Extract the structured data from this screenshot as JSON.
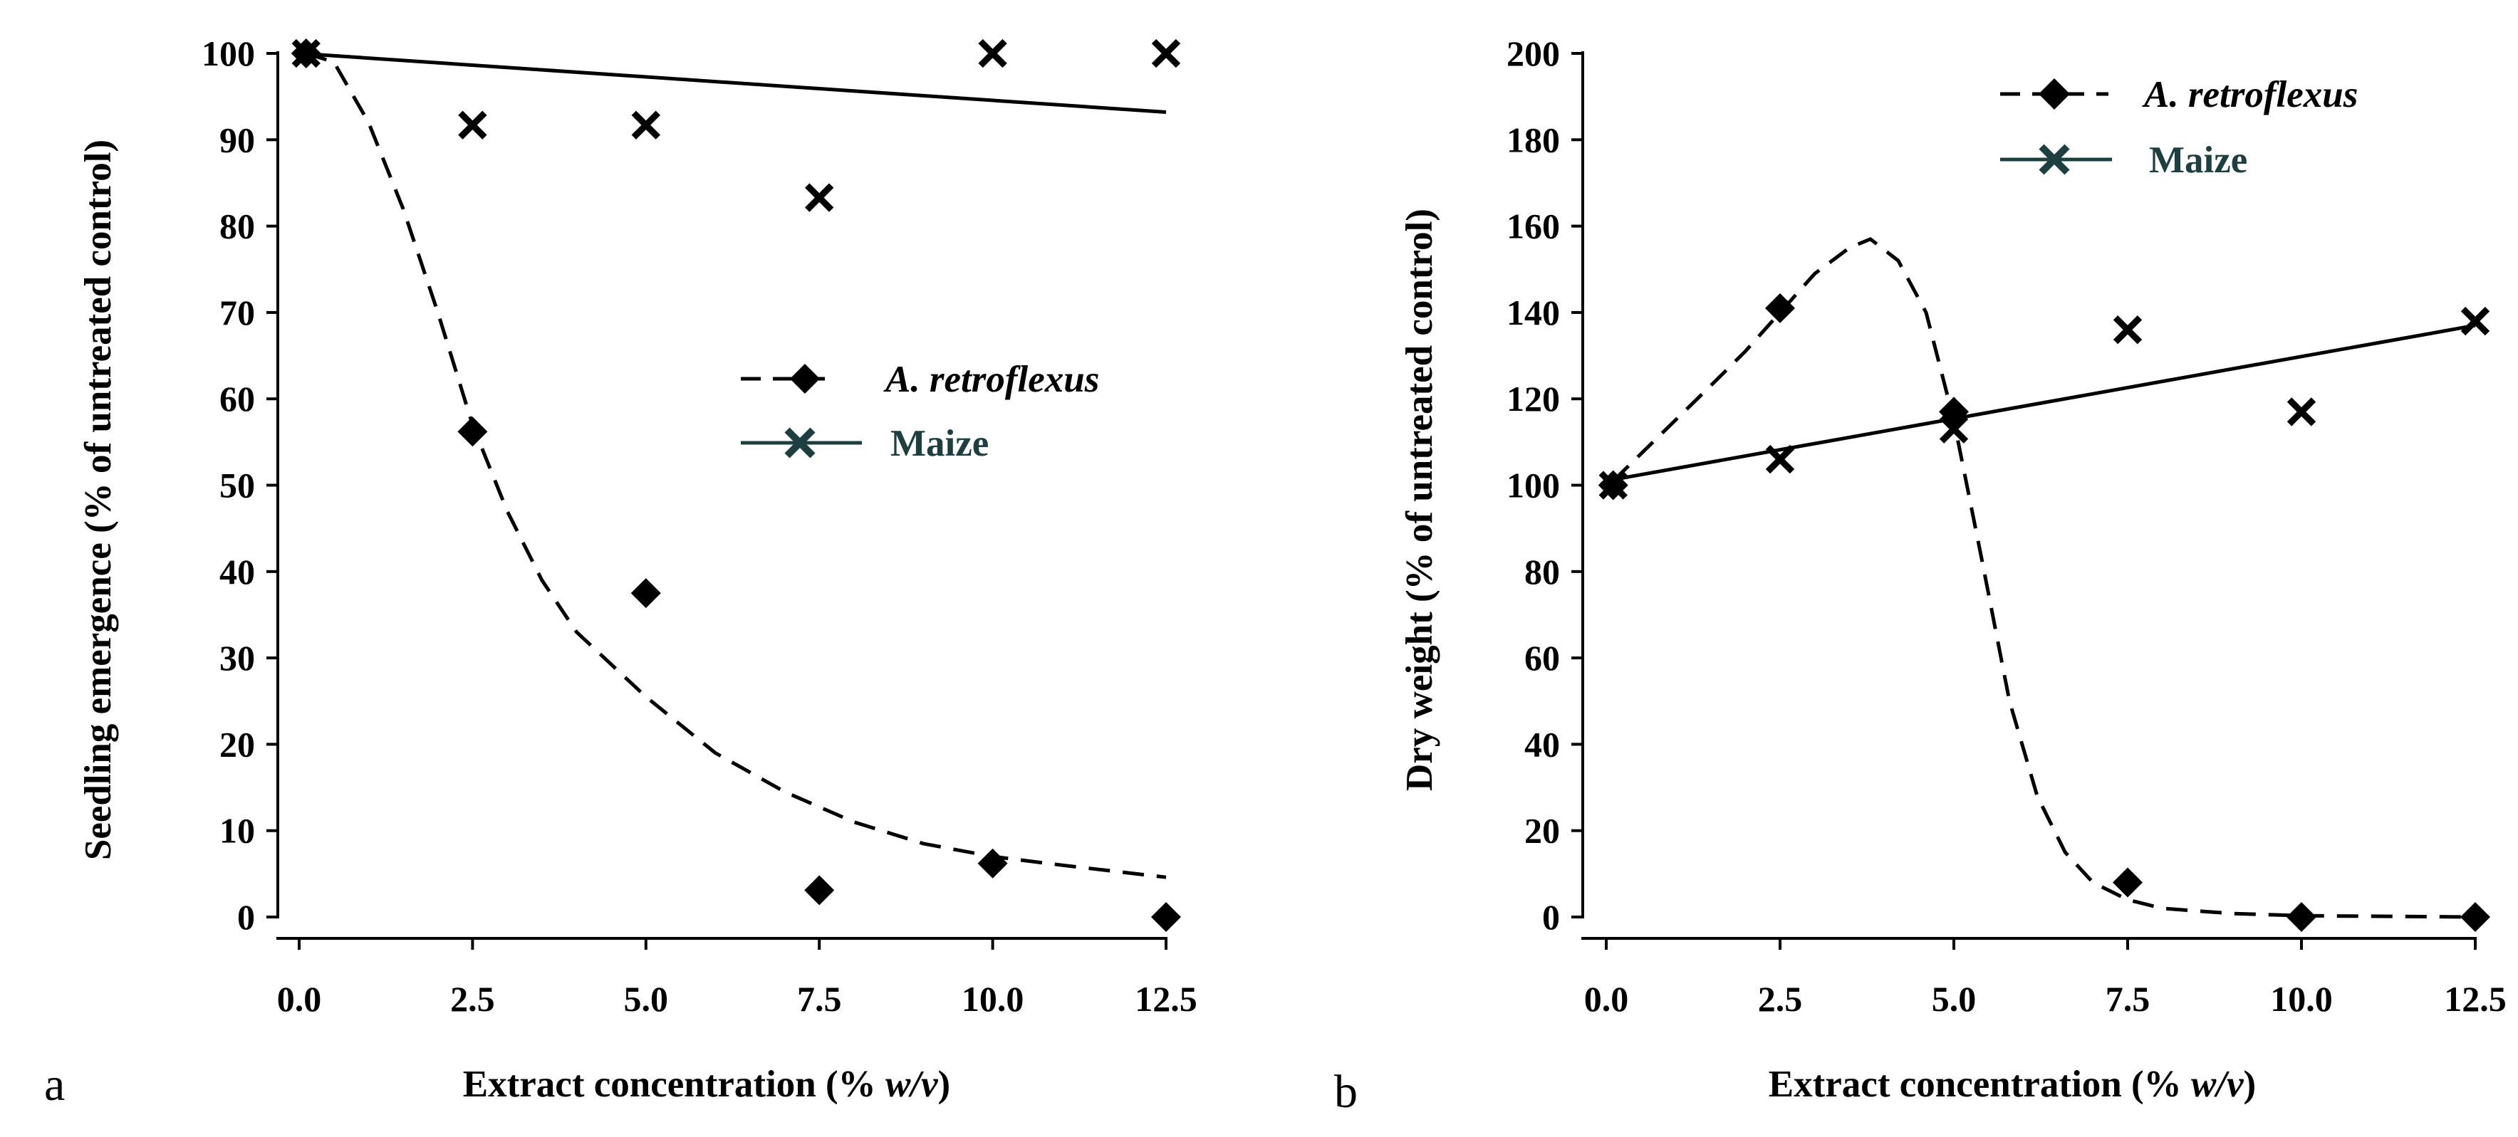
{
  "chart_data": [
    {
      "type": "scatter",
      "panel_letter": "a",
      "xlabel_prefix": "Extract concentration (% ",
      "xlabel_italic": "w/v",
      "xlabel_suffix": ")",
      "ylabel": "Seedling emergence (% of untreated control)",
      "xlim": [
        0,
        12.5
      ],
      "ylim": [
        0,
        100
      ],
      "xticks": [
        "0.0",
        "2.5",
        "5.0",
        "7.5",
        "10.0",
        "12.5"
      ],
      "xtick_values": [
        0,
        2.5,
        5,
        7.5,
        10,
        12.5
      ],
      "yticks": [
        "0",
        "10",
        "20",
        "30",
        "40",
        "50",
        "60",
        "70",
        "80",
        "90",
        "100"
      ],
      "ytick_values": [
        0,
        10,
        20,
        30,
        40,
        50,
        60,
        70,
        80,
        90,
        100
      ],
      "legend_position": "middle-right",
      "series": [
        {
          "name": "A. retroflexus",
          "marker": "diamond",
          "line": "dashed",
          "color": "#000000",
          "x": [
            0.1,
            2.5,
            5,
            7.5,
            10,
            12.5
          ],
          "y": [
            100,
            56.2,
            37.5,
            3.1,
            6.2,
            0
          ],
          "fit": [
            [
              0.1,
              100
            ],
            [
              0.5,
              99
            ],
            [
              1.0,
              92
            ],
            [
              1.5,
              82
            ],
            [
              2.0,
              70
            ],
            [
              2.5,
              57
            ],
            [
              3.0,
              47
            ],
            [
              3.5,
              39
            ],
            [
              4.0,
              33
            ],
            [
              5.0,
              25.5
            ],
            [
              6.0,
              19
            ],
            [
              7.0,
              14.5
            ],
            [
              8.0,
              11
            ],
            [
              9.0,
              8.5
            ],
            [
              10.0,
              7
            ],
            [
              11.0,
              6
            ],
            [
              12.5,
              4.6
            ]
          ]
        },
        {
          "name": "Maize",
          "marker": "x",
          "line": "solid",
          "color": "#1e3f3f",
          "x": [
            0.1,
            2.5,
            5,
            7.5,
            10,
            12.5
          ],
          "y": [
            100,
            91.7,
            91.7,
            83.3,
            100,
            100
          ],
          "fit": [
            [
              0,
              100
            ],
            [
              12.5,
              93.2
            ]
          ]
        }
      ]
    },
    {
      "type": "scatter",
      "panel_letter": "b",
      "xlabel_prefix": "Extract concentration (% ",
      "xlabel_italic": "w/v",
      "xlabel_suffix": ")",
      "ylabel": "Dry weight  (% of untreated control)",
      "xlim": [
        0,
        12.5
      ],
      "ylim": [
        0,
        200
      ],
      "xticks": [
        "0.0",
        "2.5",
        "5.0",
        "7.5",
        "10.0",
        "12.5"
      ],
      "xtick_values": [
        0,
        2.5,
        5,
        7.5,
        10,
        12.5
      ],
      "yticks": [
        "0",
        "20",
        "40",
        "60",
        "80",
        "100",
        "120",
        "140",
        "160",
        "180",
        "200"
      ],
      "ytick_values": [
        0,
        20,
        40,
        60,
        80,
        100,
        120,
        140,
        160,
        180,
        200
      ],
      "legend_position": "top-right",
      "series": [
        {
          "name": "A. retroflexus",
          "marker": "diamond",
          "line": "dashed",
          "color": "#000000",
          "x": [
            0.1,
            2.5,
            5,
            7.5,
            10,
            12.5
          ],
          "y": [
            100,
            141,
            117,
            8,
            0,
            0
          ],
          "fit": [
            [
              0.1,
              101
            ],
            [
              0.8,
              112
            ],
            [
              1.5,
              123
            ],
            [
              2.0,
              131
            ],
            [
              2.5,
              140
            ],
            [
              3.0,
              149
            ],
            [
              3.5,
              155
            ],
            [
              3.8,
              157
            ],
            [
              4.2,
              152
            ],
            [
              4.6,
              140
            ],
            [
              5.0,
              115
            ],
            [
              5.4,
              83
            ],
            [
              5.8,
              50
            ],
            [
              6.2,
              28
            ],
            [
              6.6,
              15
            ],
            [
              7.0,
              8
            ],
            [
              7.5,
              4
            ],
            [
              8.0,
              2
            ],
            [
              9.0,
              0.8
            ],
            [
              10.0,
              0.3
            ],
            [
              12.5,
              0
            ]
          ]
        },
        {
          "name": "Maize",
          "marker": "x",
          "line": "solid",
          "color": "#1e3f3f",
          "x": [
            0.1,
            2.5,
            5,
            7.5,
            10,
            12.5
          ],
          "y": [
            100,
            106,
            113,
            136,
            117,
            138
          ],
          "fit": [
            [
              0,
              101
            ],
            [
              12.5,
              137
            ]
          ]
        }
      ]
    }
  ]
}
